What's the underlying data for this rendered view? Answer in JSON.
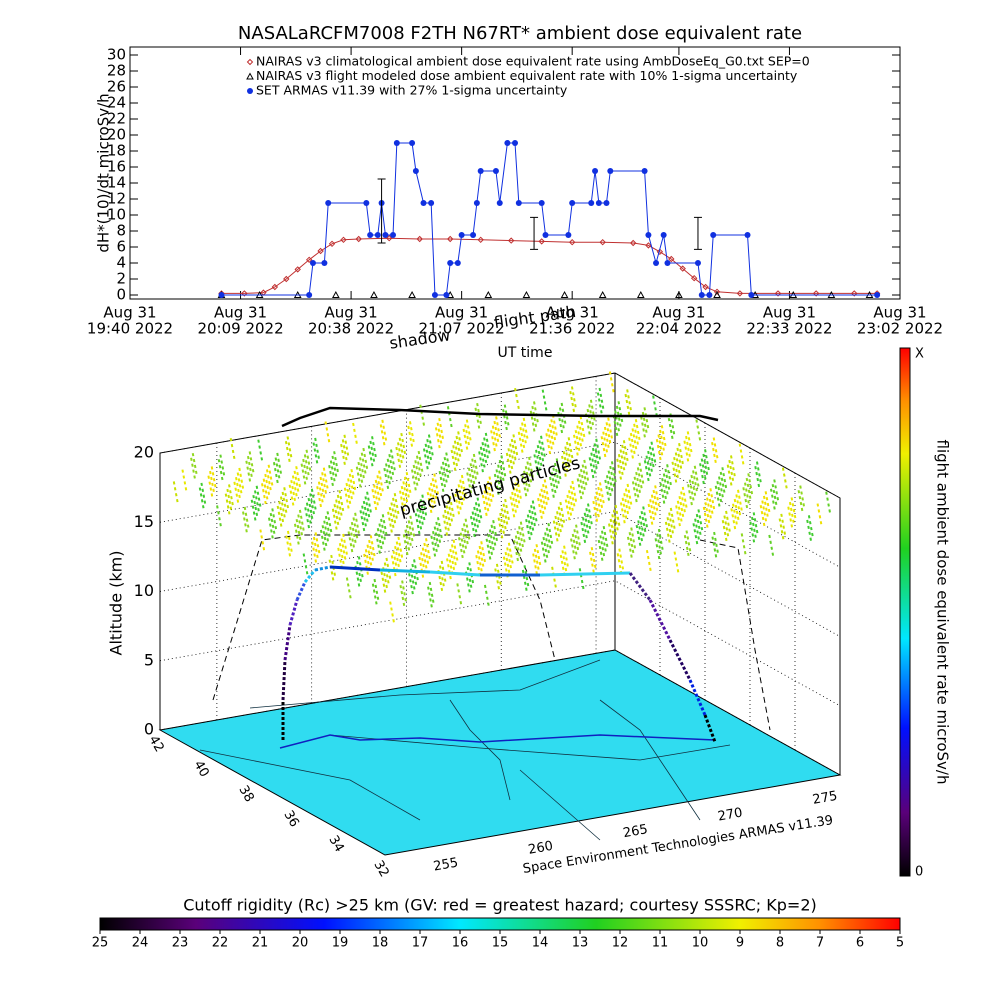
{
  "chart_data": [
    {
      "type": "line",
      "title": "NASALaRCFM7008  F2TH N67RT* ambient dose equivalent rate",
      "y_label": "dH*(10)/dt microSv/h",
      "x_label": "UT time",
      "xlim": [
        "2022-08-31 19:40",
        "2022-08-31 23:02"
      ],
      "xticks": [
        {
          "value": "2022-08-31 19:40",
          "label": [
            "Aug 31",
            "19:40 2022"
          ]
        },
        {
          "value": "2022-08-31 20:09",
          "label": [
            "Aug 31",
            "20:09 2022"
          ]
        },
        {
          "value": "2022-08-31 20:38",
          "label": [
            "Aug 31",
            "20:38 2022"
          ]
        },
        {
          "value": "2022-08-31 21:07",
          "label": [
            "Aug 31",
            "21:07 2022"
          ]
        },
        {
          "value": "2022-08-31 21:36",
          "label": [
            "Aug 31",
            "21:36 2022"
          ]
        },
        {
          "value": "2022-08-31 22:04",
          "label": [
            "Aug 31",
            "22:04 2022"
          ]
        },
        {
          "value": "2022-08-31 22:33",
          "label": [
            "Aug 31",
            "22:33 2022"
          ]
        },
        {
          "value": "2022-08-31 23:02",
          "label": [
            "Aug 31",
            "23:02 2022"
          ]
        }
      ],
      "ylim": [
        -0.5,
        31
      ],
      "yticks": [
        0,
        2,
        4,
        6,
        8,
        10,
        12,
        14,
        16,
        18,
        20,
        22,
        24,
        26,
        28,
        30
      ],
      "series": [
        {
          "name": "NAIRAS v3 climatological ambient dose equivalent rate using AmbDoseEq_G0.txt SEP=0",
          "color": "#c03030",
          "marker": "diamond",
          "line": true,
          "x": [
            "2022-08-31 20:04",
            "2022-08-31 20:10",
            "2022-08-31 20:15",
            "2022-08-31 20:18",
            "2022-08-31 20:21",
            "2022-08-31 20:24",
            "2022-08-31 20:27",
            "2022-08-31 20:30",
            "2022-08-31 20:33",
            "2022-08-31 20:36",
            "2022-08-31 20:40",
            "2022-08-31 20:48",
            "2022-08-31 20:56",
            "2022-08-31 21:04",
            "2022-08-31 21:12",
            "2022-08-31 21:20",
            "2022-08-31 21:28",
            "2022-08-31 21:36",
            "2022-08-31 21:44",
            "2022-08-31 21:52",
            "2022-08-31 21:56",
            "2022-08-31 21:59",
            "2022-08-31 22:02",
            "2022-08-31 22:05",
            "2022-08-31 22:08",
            "2022-08-31 22:11",
            "2022-08-31 22:14",
            "2022-08-31 22:20",
            "2022-08-31 22:30",
            "2022-08-31 22:40",
            "2022-08-31 22:50",
            "2022-08-31 22:56"
          ],
          "values": [
            0.2,
            0.2,
            0.3,
            1,
            2,
            3.2,
            4.4,
            5.5,
            6.4,
            6.9,
            7,
            7.1,
            7,
            7,
            6.9,
            6.8,
            6.7,
            6.6,
            6.6,
            6.5,
            6.2,
            5.4,
            4.5,
            3.3,
            2.1,
            1,
            0.4,
            0.2,
            0.2,
            0.2,
            0.2,
            0.2
          ]
        },
        {
          "name": "NAIRAS v3 flight modeled dose ambient equivalent rate with 10% 1-sigma uncertainty",
          "color": "#000000",
          "marker": "triangle",
          "line": false,
          "x": [
            "2022-08-31 20:04",
            "2022-08-31 20:14",
            "2022-08-31 20:24",
            "2022-08-31 20:34",
            "2022-08-31 20:44",
            "2022-08-31 20:54",
            "2022-08-31 21:04",
            "2022-08-31 21:14",
            "2022-08-31 21:24",
            "2022-08-31 21:34",
            "2022-08-31 21:44",
            "2022-08-31 21:54",
            "2022-08-31 22:04",
            "2022-08-31 22:14",
            "2022-08-31 22:24",
            "2022-08-31 22:34",
            "2022-08-31 22:44",
            "2022-08-31 22:54"
          ],
          "values": [
            0,
            0,
            0,
            0,
            0,
            0,
            0,
            0,
            0,
            0,
            0,
            0,
            0,
            0,
            0,
            0,
            0,
            0
          ]
        },
        {
          "name": "SET ARMAS v11.39 with 27% 1-sigma uncertainty",
          "color": "#1030e0",
          "marker": "circle",
          "line": true,
          "x": [
            "2022-08-31 20:04",
            "2022-08-31 20:27",
            "2022-08-31 20:28",
            "2022-08-31 20:31",
            "2022-08-31 20:32",
            "2022-08-31 20:42",
            "2022-08-31 20:43",
            "2022-08-31 20:45",
            "2022-08-31 20:46",
            "2022-08-31 20:47",
            "2022-08-31 20:49",
            "2022-08-31 20:50",
            "2022-08-31 20:54",
            "2022-08-31 20:55",
            "2022-08-31 20:57",
            "2022-08-31 20:59",
            "2022-08-31 21:00",
            "2022-08-31 21:03",
            "2022-08-31 21:04",
            "2022-08-31 21:06",
            "2022-08-31 21:07",
            "2022-08-31 21:10",
            "2022-08-31 21:11",
            "2022-08-31 21:12",
            "2022-08-31 21:16",
            "2022-08-31 21:17",
            "2022-08-31 21:19",
            "2022-08-31 21:21",
            "2022-08-31 21:22",
            "2022-08-31 21:28",
            "2022-08-31 21:29",
            "2022-08-31 21:35",
            "2022-08-31 21:36",
            "2022-08-31 21:41",
            "2022-08-31 21:42",
            "2022-08-31 21:43",
            "2022-08-31 21:45",
            "2022-08-31 21:46",
            "2022-08-31 21:55",
            "2022-08-31 21:56",
            "2022-08-31 21:58",
            "2022-08-31 22:00",
            "2022-08-31 22:01",
            "2022-08-31 22:09",
            "2022-08-31 22:10",
            "2022-08-31 22:12",
            "2022-08-31 22:13",
            "2022-08-31 22:22",
            "2022-08-31 22:23",
            "2022-08-31 22:56"
          ],
          "values": [
            0,
            0,
            4,
            4,
            11.5,
            11.5,
            7.5,
            7.5,
            11.5,
            7.5,
            7.5,
            19,
            19,
            15.5,
            11.5,
            11.5,
            0,
            0,
            4,
            4,
            7.5,
            7.5,
            11.5,
            15.5,
            15.5,
            11.5,
            19,
            19,
            11.5,
            11.5,
            7.5,
            7.5,
            11.5,
            11.5,
            15.5,
            11.5,
            11.5,
            15.5,
            15.5,
            7.5,
            4,
            7.5,
            4,
            4,
            0,
            0,
            7.5,
            7.5,
            0,
            0
          ]
        }
      ],
      "error_bars": {
        "x": [
          "2022-08-31 20:46",
          "2022-08-31 21:26",
          "2022-08-31 22:09"
        ],
        "values": [
          10.5,
          7.7,
          7.7
        ],
        "errors": [
          4,
          2,
          2
        ]
      }
    },
    {
      "type": "surface3d",
      "z_label": "Altitude (km)",
      "zlim": [
        0,
        20
      ],
      "zticks": [
        0,
        5,
        10,
        15,
        20
      ],
      "latlim": [
        32,
        42
      ],
      "latticks": [
        32,
        34,
        36,
        38,
        40,
        42
      ],
      "lonlim": [
        252,
        276
      ],
      "lonticks": [
        255,
        260,
        265,
        270,
        275
      ],
      "annotations": [
        "shadow",
        "flight path",
        "precipitating particles"
      ],
      "credit": "Space Environment Technologies ARMAS v11.39",
      "colorbar": {
        "label": "flight ambient dose equivalent rate microSv/h",
        "top": "X",
        "bottom": "0"
      },
      "rc_colorbar": {
        "title": "Cutoff rigidity (Rc) >25 km (GV: red = greatest hazard; courtesy SSSRC; Kp=2)",
        "lim": [
          25,
          5
        ],
        "ticks": [
          25,
          24,
          23,
          22,
          21,
          20,
          19,
          18,
          17,
          16,
          15,
          14,
          13,
          12,
          11,
          10,
          9,
          8,
          7,
          6,
          5
        ]
      }
    }
  ]
}
